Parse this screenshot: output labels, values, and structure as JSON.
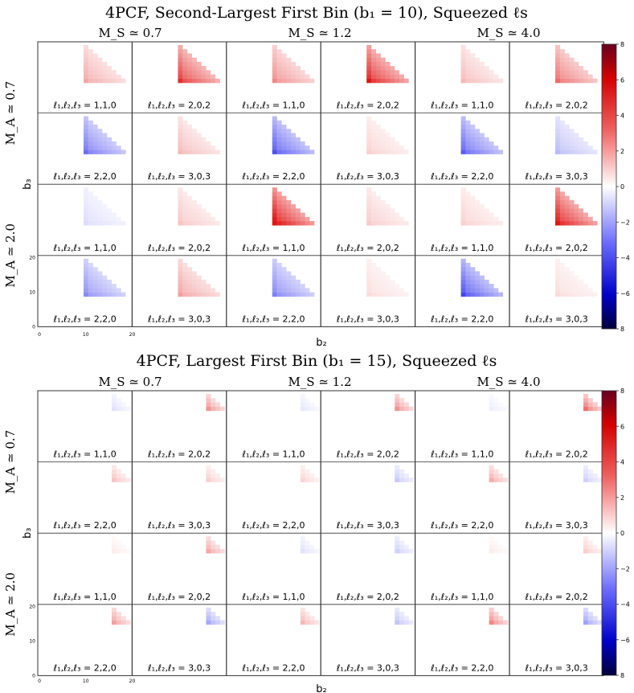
{
  "chart_data": [
    {
      "type": "heatmap",
      "title": "4PCF, Second-Largest First Bin (b₁ = 10), Squeezed ℓs",
      "b1": 10,
      "xlabel": "b₂",
      "ylabel": "b₃",
      "xticks": [
        "0",
        "10",
        "20"
      ],
      "yticks": [
        "0",
        "10",
        "20"
      ],
      "column_groups": [
        "M_S ≃ 0.7",
        "M_S ≃ 1.2",
        "M_S ≃ 4.0"
      ],
      "row_groups": [
        "M_A ≃ 0.7",
        "M_A ≃ 2.0"
      ],
      "colorbar": {
        "vmin": -8,
        "vmax": 8,
        "ticks": [
          "8",
          "6",
          "4",
          "2",
          "0",
          "−2",
          "−4",
          "−6",
          "8"
        ]
      },
      "panels": [
        [
          {
            "label": "ℓ₁,ℓ₂,ℓ₃ = 1,1,0",
            "value": 1.5
          },
          {
            "label": "ℓ₁,ℓ₂,ℓ₃ = 2,0,2",
            "value": 3.5
          },
          {
            "label": "ℓ₁,ℓ₂,ℓ₃ = 1,1,0",
            "value": 2.0
          },
          {
            "label": "ℓ₁,ℓ₂,ℓ₃ = 2,0,2",
            "value": 4.0
          },
          {
            "label": "ℓ₁,ℓ₂,ℓ₃ = 1,1,0",
            "value": 1.2
          },
          {
            "label": "ℓ₁,ℓ₂,ℓ₃ = 2,0,2",
            "value": 2.5
          }
        ],
        [
          {
            "label": "ℓ₁,ℓ₂,ℓ₃ = 2,2,0",
            "value": -2.5
          },
          {
            "label": "ℓ₁,ℓ₂,ℓ₃ = 3,0,3",
            "value": 1.2
          },
          {
            "label": "ℓ₁,ℓ₂,ℓ₃ = 2,2,0",
            "value": -3.0
          },
          {
            "label": "ℓ₁,ℓ₂,ℓ₃ = 3,0,3",
            "value": 0.8
          },
          {
            "label": "ℓ₁,ℓ₂,ℓ₃ = 2,2,0",
            "value": -2.8
          },
          {
            "label": "ℓ₁,ℓ₂,ℓ₃ = 3,0,3",
            "value": -1.2
          }
        ],
        [
          {
            "label": "ℓ₁,ℓ₂,ℓ₃ = 1,1,0",
            "value": -0.6
          },
          {
            "label": "ℓ₁,ℓ₂,ℓ₃ = 2,0,2",
            "value": 1.0
          },
          {
            "label": "ℓ₁,ℓ₂,ℓ₃ = 1,1,0",
            "value": 4.5
          },
          {
            "label": "ℓ₁,ℓ₂,ℓ₃ = 2,0,2",
            "value": 0.9
          },
          {
            "label": "ℓ₁,ℓ₂,ℓ₃ = 1,1,0",
            "value": 0.8
          },
          {
            "label": "ℓ₁,ℓ₂,ℓ₃ = 2,0,2",
            "value": 4.2
          }
        ],
        [
          {
            "label": "ℓ₁,ℓ₂,ℓ₃ = 2,2,0",
            "value": -2.0
          },
          {
            "label": "ℓ₁,ℓ₂,ℓ₃ = 3,0,3",
            "value": 1.6
          },
          {
            "label": "ℓ₁,ℓ₂,ℓ₃ = 2,2,0",
            "value": -2.2
          },
          {
            "label": "ℓ₁,ℓ₂,ℓ₃ = 3,0,3",
            "value": 0.6
          },
          {
            "label": "ℓ₁,ℓ₂,ℓ₃ = 2,2,0",
            "value": -3.2
          },
          {
            "label": "ℓ₁,ℓ₂,ℓ₃ = 3,0,3",
            "value": 0.6
          }
        ]
      ]
    },
    {
      "type": "heatmap",
      "title": "4PCF, Largest First Bin (b₁ = 15), Squeezed ℓs",
      "b1": 15,
      "xlabel": "b₂",
      "ylabel": "b₃",
      "xticks": [
        "0",
        "10",
        "20"
      ],
      "yticks": [
        "0",
        "10",
        "20"
      ],
      "column_groups": [
        "M_S ≃ 0.7",
        "M_S ≃ 1.2",
        "M_S ≃ 4.0"
      ],
      "row_groups": [
        "M_A ≃ 0.7",
        "M_A ≃ 2.0"
      ],
      "colorbar": {
        "vmin": -8,
        "vmax": 8,
        "ticks": [
          "8",
          "6",
          "4",
          "2",
          "0",
          "−2",
          "−4",
          "−6",
          "8"
        ]
      },
      "panels": [
        [
          {
            "label": "ℓ₁,ℓ₂,ℓ₃ = 1,1,0",
            "value": -0.5
          },
          {
            "label": "ℓ₁,ℓ₂,ℓ₃ = 2,0,2",
            "value": 1.8
          },
          {
            "label": "ℓ₁,ℓ₂,ℓ₃ = 1,1,0",
            "value": -0.4
          },
          {
            "label": "ℓ₁,ℓ₂,ℓ₃ = 2,0,2",
            "value": 1.8
          },
          {
            "label": "ℓ₁,ℓ₂,ℓ₃ = 1,1,0",
            "value": -0.3
          },
          {
            "label": "ℓ₁,ℓ₂,ℓ₃ = 2,0,2",
            "value": 2.4
          }
        ],
        [
          {
            "label": "ℓ₁,ℓ₂,ℓ₃ = 2,2,0",
            "value": 1.0
          },
          {
            "label": "ℓ₁,ℓ₂,ℓ₃ = 3,0,3",
            "value": 0.8
          },
          {
            "label": "ℓ₁,ℓ₂,ℓ₃ = 2,2,0",
            "value": 0.7
          },
          {
            "label": "ℓ₁,ℓ₂,ℓ₃ = 3,0,3",
            "value": -0.9
          },
          {
            "label": "ℓ₁,ℓ₂,ℓ₃ = 2,2,0",
            "value": 1.4
          },
          {
            "label": "ℓ₁,ℓ₂,ℓ₃ = 3,0,3",
            "value": -0.8
          }
        ],
        [
          {
            "label": "ℓ₁,ℓ₂,ℓ₃ = 1,1,0",
            "value": 0.3
          },
          {
            "label": "ℓ₁,ℓ₂,ℓ₃ = 2,0,2",
            "value": 1.5
          },
          {
            "label": "ℓ₁,ℓ₂,ℓ₃ = 1,1,0",
            "value": -0.5
          },
          {
            "label": "ℓ₁,ℓ₂,ℓ₃ = 2,0,2",
            "value": -0.8
          },
          {
            "label": "ℓ₁,ℓ₂,ℓ₃ = 1,1,0",
            "value": 0.3
          },
          {
            "label": "ℓ₁,ℓ₂,ℓ₃ = 2,0,2",
            "value": 0.8
          }
        ],
        [
          {
            "label": "ℓ₁,ℓ₂,ℓ₃ = 2,2,0",
            "value": 1.6
          },
          {
            "label": "ℓ₁,ℓ₂,ℓ₃ = 3,0,3",
            "value": -1.5
          },
          {
            "label": "ℓ₁,ℓ₂,ℓ₃ = 2,2,0",
            "value": 1.2
          },
          {
            "label": "ℓ₁,ℓ₂,ℓ₃ = 3,0,3",
            "value": -1.0
          },
          {
            "label": "ℓ₁,ℓ₂,ℓ₃ = 2,2,0",
            "value": 2.0
          },
          {
            "label": "ℓ₁,ℓ₂,ℓ₃ = 3,0,3",
            "value": -1.6
          }
        ]
      ]
    }
  ]
}
